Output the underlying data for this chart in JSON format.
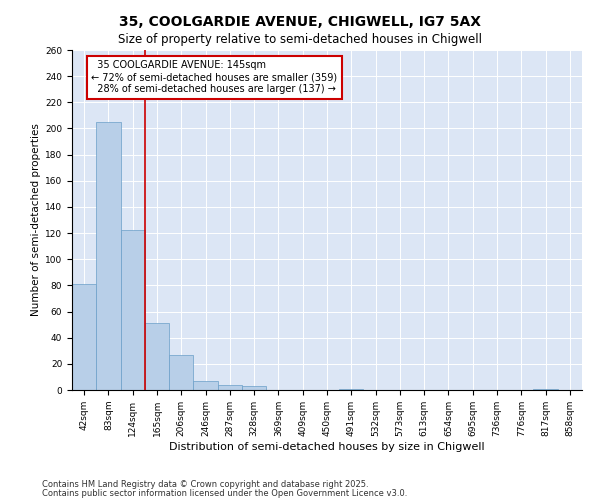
{
  "title_line1": "35, COOLGARDIE AVENUE, CHIGWELL, IG7 5AX",
  "title_line2": "Size of property relative to semi-detached houses in Chigwell",
  "xlabel": "Distribution of semi-detached houses by size in Chigwell",
  "ylabel": "Number of semi-detached properties",
  "categories": [
    "42sqm",
    "83sqm",
    "124sqm",
    "165sqm",
    "206sqm",
    "246sqm",
    "287sqm",
    "328sqm",
    "369sqm",
    "409sqm",
    "450sqm",
    "491sqm",
    "532sqm",
    "573sqm",
    "613sqm",
    "654sqm",
    "695sqm",
    "736sqm",
    "776sqm",
    "817sqm",
    "858sqm"
  ],
  "values": [
    81,
    205,
    122,
    51,
    27,
    7,
    4,
    3,
    0,
    0,
    0,
    1,
    0,
    0,
    0,
    0,
    0,
    0,
    0,
    1,
    0
  ],
  "bar_color": "#b8cfe8",
  "bar_edge_color": "#6a9fc8",
  "property_label": "35 COOLGARDIE AVENUE: 145sqm",
  "pct_smaller": 72,
  "pct_larger": 28,
  "count_smaller": 359,
  "count_larger": 137,
  "ylim": [
    0,
    260
  ],
  "yticks": [
    0,
    20,
    40,
    60,
    80,
    100,
    120,
    140,
    160,
    180,
    200,
    220,
    240,
    260
  ],
  "background_color": "#dce6f5",
  "vline_color": "#cc0000",
  "footnote_line1": "Contains HM Land Registry data © Crown copyright and database right 2025.",
  "footnote_line2": "Contains public sector information licensed under the Open Government Licence v3.0.",
  "annotation_box_edge": "#cc0000",
  "grid_color": "#ffffff",
  "title1_fontsize": 10,
  "title2_fontsize": 8.5,
  "xlabel_fontsize": 8,
  "ylabel_fontsize": 7.5,
  "tick_fontsize": 6.5,
  "annot_fontsize": 7,
  "footnote_fontsize": 6
}
